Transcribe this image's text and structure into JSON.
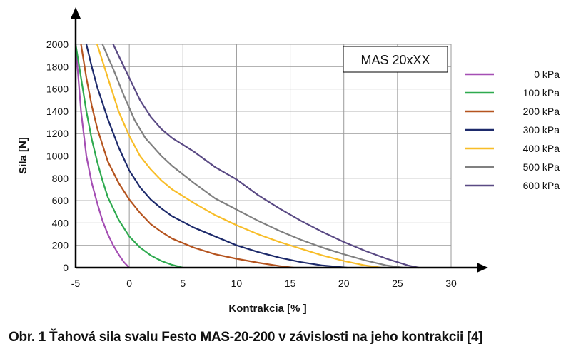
{
  "caption": "Obr. 1 Ťahová sila svalu Festo MAS-20-200 v závislosti na jeho kontrakcii [4]",
  "chart_data": {
    "type": "line",
    "title": "",
    "box_label": "MAS 20xXX",
    "xlabel": "Kontrakcia  [% ]",
    "ylabel": "Sila [N]",
    "xlim": [
      -5,
      30
    ],
    "ylim": [
      0,
      2000
    ],
    "x_ticks": [
      "-5",
      "0",
      "5",
      "10",
      "15",
      "20",
      "25",
      "30"
    ],
    "y_ticks": [
      "0",
      "200",
      "400",
      "600",
      "800",
      "1000",
      "1200",
      "1400",
      "1600",
      "1800",
      "2000"
    ],
    "grid": true,
    "legend_position": "right",
    "series": [
      {
        "name": "0 kPa",
        "color": "#a54fb4",
        "points": [
          [
            -5,
            2000
          ],
          [
            -4.5,
            1400
          ],
          [
            -4,
            1000
          ],
          [
            -3.5,
            760
          ],
          [
            -3,
            580
          ],
          [
            -2.5,
            420
          ],
          [
            -2,
            300
          ],
          [
            -1.5,
            200
          ],
          [
            -1,
            120
          ],
          [
            -0.5,
            50
          ],
          [
            0,
            0
          ]
        ]
      },
      {
        "name": "100 kPa",
        "color": "#2eaa4f",
        "points": [
          [
            -5,
            2000
          ],
          [
            -4.5,
            1700
          ],
          [
            -4,
            1400
          ],
          [
            -3.5,
            1150
          ],
          [
            -3,
            950
          ],
          [
            -2.5,
            780
          ],
          [
            -2,
            630
          ],
          [
            -1,
            430
          ],
          [
            0,
            280
          ],
          [
            1,
            180
          ],
          [
            2,
            110
          ],
          [
            3,
            60
          ],
          [
            4,
            25
          ],
          [
            5,
            0
          ]
        ]
      },
      {
        "name": "200 kPa",
        "color": "#b5541f",
        "points": [
          [
            -4.5,
            2000
          ],
          [
            -4,
            1700
          ],
          [
            -3.5,
            1450
          ],
          [
            -3,
            1250
          ],
          [
            -2,
            950
          ],
          [
            -1,
            760
          ],
          [
            0,
            610
          ],
          [
            1,
            490
          ],
          [
            2,
            390
          ],
          [
            3,
            320
          ],
          [
            4,
            260
          ],
          [
            6,
            180
          ],
          [
            8,
            120
          ],
          [
            10,
            80
          ],
          [
            12,
            45
          ],
          [
            14,
            15
          ],
          [
            15.3,
            0
          ]
        ]
      },
      {
        "name": "300 kPa",
        "color": "#1d2a6b",
        "points": [
          [
            -4,
            2000
          ],
          [
            -3.5,
            1800
          ],
          [
            -3,
            1620
          ],
          [
            -2,
            1330
          ],
          [
            -1,
            1080
          ],
          [
            0,
            870
          ],
          [
            1,
            720
          ],
          [
            2,
            610
          ],
          [
            3,
            530
          ],
          [
            4,
            460
          ],
          [
            6,
            360
          ],
          [
            8,
            280
          ],
          [
            10,
            200
          ],
          [
            12,
            140
          ],
          [
            14,
            90
          ],
          [
            16,
            50
          ],
          [
            18,
            20
          ],
          [
            20.3,
            0
          ]
        ]
      },
      {
        "name": "400 kPa",
        "color": "#f8bd27",
        "points": [
          [
            -3,
            2000
          ],
          [
            -2,
            1700
          ],
          [
            -1,
            1400
          ],
          [
            0,
            1180
          ],
          [
            1,
            1000
          ],
          [
            2,
            880
          ],
          [
            3,
            780
          ],
          [
            4,
            700
          ],
          [
            6,
            580
          ],
          [
            8,
            470
          ],
          [
            10,
            380
          ],
          [
            12,
            300
          ],
          [
            14,
            230
          ],
          [
            16,
            170
          ],
          [
            18,
            110
          ],
          [
            20,
            60
          ],
          [
            22,
            20
          ],
          [
            23.5,
            0
          ]
        ]
      },
      {
        "name": "500 kPa",
        "color": "#808080",
        "points": [
          [
            -2.5,
            2000
          ],
          [
            -1.5,
            1780
          ],
          [
            -0.5,
            1540
          ],
          [
            0.5,
            1320
          ],
          [
            1.5,
            1160
          ],
          [
            3,
            1000
          ],
          [
            4,
            910
          ],
          [
            6,
            760
          ],
          [
            8,
            620
          ],
          [
            10,
            520
          ],
          [
            12,
            420
          ],
          [
            14,
            330
          ],
          [
            16,
            250
          ],
          [
            18,
            180
          ],
          [
            20,
            120
          ],
          [
            22,
            65
          ],
          [
            24,
            20
          ],
          [
            25.5,
            0
          ]
        ]
      },
      {
        "name": "600 kPa",
        "color": "#5a4a84",
        "points": [
          [
            -1.5,
            2000
          ],
          [
            0,
            1700
          ],
          [
            1,
            1500
          ],
          [
            2,
            1350
          ],
          [
            3,
            1240
          ],
          [
            4,
            1160
          ],
          [
            5,
            1100
          ],
          [
            6,
            1040
          ],
          [
            8,
            900
          ],
          [
            10,
            790
          ],
          [
            12,
            650
          ],
          [
            14,
            530
          ],
          [
            16,
            420
          ],
          [
            18,
            320
          ],
          [
            20,
            230
          ],
          [
            22,
            150
          ],
          [
            24,
            80
          ],
          [
            26,
            20
          ],
          [
            27,
            0
          ]
        ]
      }
    ]
  }
}
